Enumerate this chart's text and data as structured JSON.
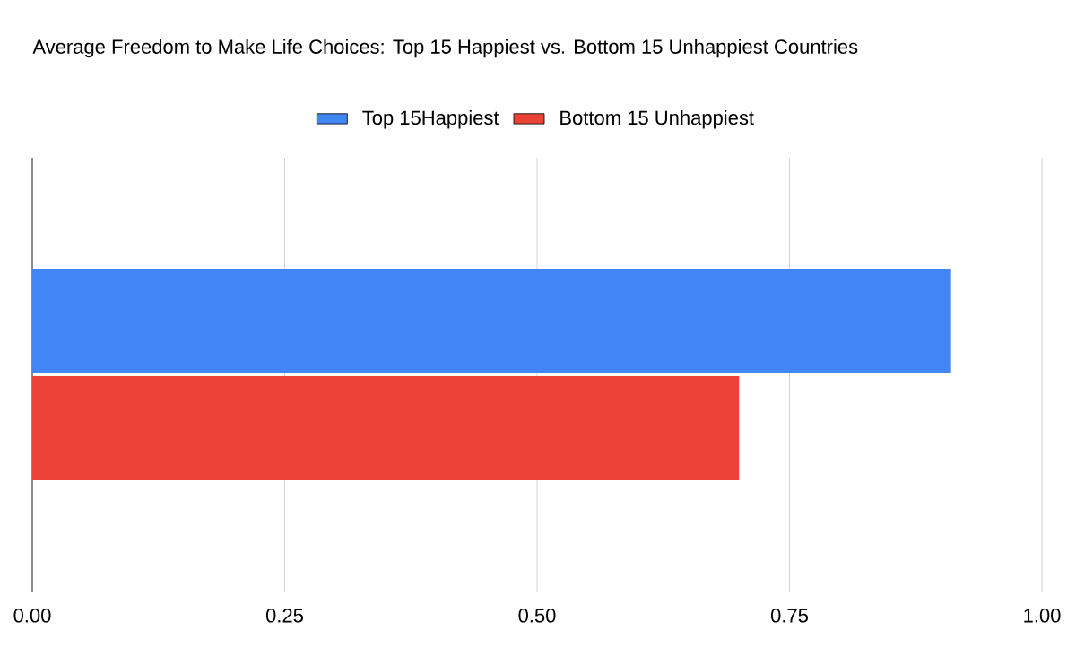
{
  "chart_data": {
    "type": "bar",
    "orientation": "horizontal",
    "title": "Average Freedom to Make Life Choices: Top 15 Happiest vs. Bottom 15 Unhappiest Countries",
    "categories": [
      null
    ],
    "series": [
      {
        "name": "Top 15Happiest",
        "color": "#4285f4",
        "values": [
          0.91
        ]
      },
      {
        "name": "Bottom 15 Unhappiest",
        "color": "#ea4335",
        "values": [
          0.7
        ]
      }
    ],
    "xlim": [
      0,
      1
    ],
    "xticks": [
      {
        "value": 0,
        "label": "0.00"
      },
      {
        "value": 0.25,
        "label": "0.25"
      },
      {
        "value": 0.5,
        "label": "0.50"
      },
      {
        "value": 0.75,
        "label": "0.75"
      },
      {
        "value": 1,
        "label": "1.00"
      }
    ],
    "grid": "x",
    "legend": "top"
  }
}
